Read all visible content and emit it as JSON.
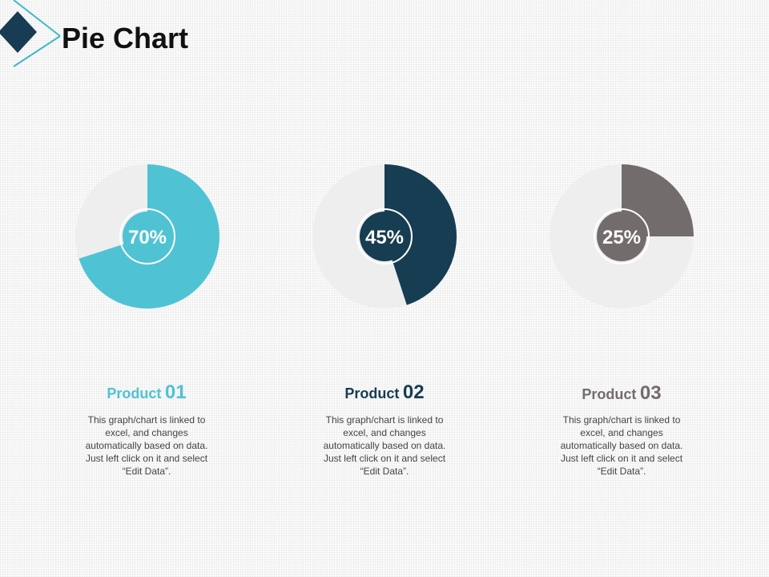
{
  "page": {
    "title": "Pie Chart"
  },
  "chart_data": [
    {
      "type": "pie",
      "values": [
        70,
        30
      ],
      "center_label": "70%",
      "product_prefix": "Product",
      "product_number": "01",
      "description": "This graph/chart is linked to excel, and changes automatically based on data. Just left click on it and select “Edit Data”.",
      "color": "#4fc3d3",
      "rest_color": "#eeeeee"
    },
    {
      "type": "pie",
      "values": [
        45,
        55
      ],
      "center_label": "45%",
      "product_prefix": "Product",
      "product_number": "02",
      "description": "This graph/chart is linked to excel, and changes automatically based on data. Just left click on it and select “Edit Data”.",
      "color": "#163d52",
      "rest_color": "#eeeeee"
    },
    {
      "type": "pie",
      "values": [
        25,
        75
      ],
      "center_label": "25%",
      "product_prefix": "Product",
      "product_number": "03",
      "description": "This graph/chart is linked to excel, and changes automatically based on data. Just left click on it and select “Edit Data”.",
      "color": "#736c6c",
      "rest_color": "#eeeeee"
    }
  ]
}
